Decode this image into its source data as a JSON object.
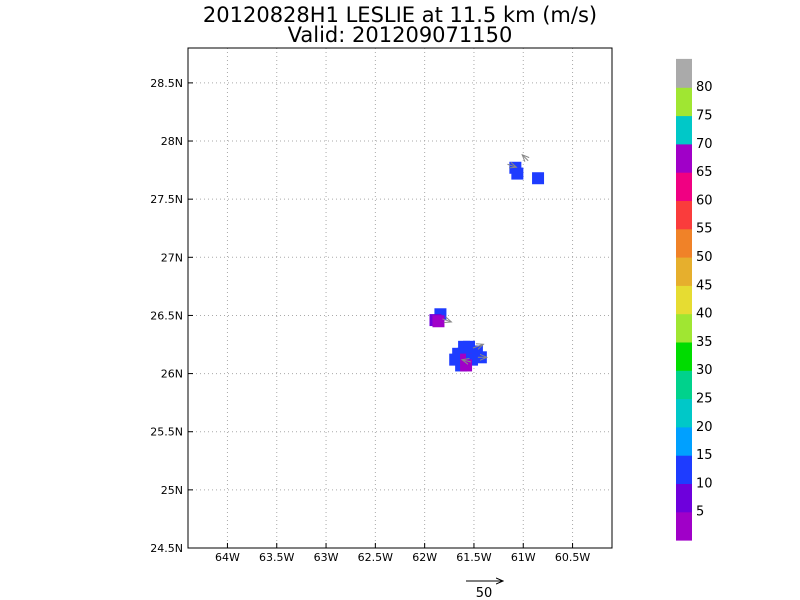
{
  "chart_data": {
    "type": "heatmap",
    "title": "20120828H1 LESLIE at 11.5 km (m/s)",
    "subtitle": "Valid: 201209071150",
    "xlabel": "",
    "ylabel": "",
    "xlim": [
      -64.4,
      -60.1
    ],
    "ylim": [
      24.5,
      28.8
    ],
    "grid": true,
    "x_ticks": [
      {
        "value": -64.0,
        "label": "64W"
      },
      {
        "value": -63.5,
        "label": "63.5W"
      },
      {
        "value": -63.0,
        "label": "63W"
      },
      {
        "value": -62.5,
        "label": "62.5W"
      },
      {
        "value": -62.0,
        "label": "62W"
      },
      {
        "value": -61.5,
        "label": "61.5W"
      },
      {
        "value": -61.0,
        "label": "61W"
      },
      {
        "value": -60.5,
        "label": "60.5W"
      }
    ],
    "y_ticks": [
      {
        "value": 24.5,
        "label": "24.5N"
      },
      {
        "value": 25.0,
        "label": "25N"
      },
      {
        "value": 25.5,
        "label": "25.5N"
      },
      {
        "value": 26.0,
        "label": "26N"
      },
      {
        "value": 26.5,
        "label": "26.5N"
      },
      {
        "value": 27.0,
        "label": "27N"
      },
      {
        "value": 27.5,
        "label": "27.5N"
      },
      {
        "value": 28.0,
        "label": "28N"
      },
      {
        "value": 28.5,
        "label": "28.5N"
      }
    ],
    "colorbar": {
      "levels": [
        0,
        5,
        10,
        15,
        20,
        25,
        30,
        35,
        40,
        45,
        50,
        55,
        60,
        65,
        70,
        75,
        80,
        85
      ],
      "labels": [
        "5",
        "10",
        "15",
        "20",
        "25",
        "30",
        "35",
        "40",
        "45",
        "50",
        "55",
        "60",
        "65",
        "70",
        "75",
        "80"
      ],
      "colors": [
        "#a000c8",
        "#6e00dc",
        "#1e3cff",
        "#00a0ff",
        "#00c8c8",
        "#00d28c",
        "#00dc00",
        "#a0e632",
        "#e6dc32",
        "#e6af2d",
        "#f08228",
        "#fa3c3c",
        "#f00082",
        "#a000c8",
        "#00c8c8",
        "#a0e632",
        "#aaaaaa"
      ]
    },
    "cells": [
      {
        "lon": -61.08,
        "lat": 27.77,
        "value": 13
      },
      {
        "lon": -61.06,
        "lat": 27.72,
        "value": 13
      },
      {
        "lon": -60.85,
        "lat": 27.68,
        "value": 13
      },
      {
        "lon": -61.84,
        "lat": 26.51,
        "value": 13
      },
      {
        "lon": -61.89,
        "lat": 26.46,
        "value": 9
      },
      {
        "lon": -61.86,
        "lat": 26.45,
        "value": 4
      },
      {
        "lon": -61.6,
        "lat": 26.23,
        "value": 13
      },
      {
        "lon": -61.55,
        "lat": 26.23,
        "value": 13
      },
      {
        "lon": -61.66,
        "lat": 26.17,
        "value": 13
      },
      {
        "lon": -61.61,
        "lat": 26.17,
        "value": 13
      },
      {
        "lon": -61.55,
        "lat": 26.17,
        "value": 13
      },
      {
        "lon": -61.47,
        "lat": 26.19,
        "value": 13
      },
      {
        "lon": -61.43,
        "lat": 26.14,
        "value": 13
      },
      {
        "lon": -61.69,
        "lat": 26.12,
        "value": 13
      },
      {
        "lon": -61.58,
        "lat": 26.12,
        "value": 4
      },
      {
        "lon": -61.52,
        "lat": 26.12,
        "value": 13
      },
      {
        "lon": -61.63,
        "lat": 26.07,
        "value": 13
      },
      {
        "lon": -61.58,
        "lat": 26.07,
        "value": 4
      }
    ],
    "vectors": [
      {
        "lon": -61.16,
        "lat": 27.8,
        "u": 12,
        "v": -4
      },
      {
        "lon": -60.95,
        "lat": 27.83,
        "u": -8,
        "v": 8
      },
      {
        "lon": -61.82,
        "lat": 26.47,
        "u": 12,
        "v": -4
      },
      {
        "lon": -61.51,
        "lat": 26.22,
        "u": 14,
        "v": 5
      },
      {
        "lon": -61.46,
        "lat": 26.14,
        "u": 12,
        "v": 0
      },
      {
        "lon": -61.53,
        "lat": 26.1,
        "u": -12,
        "v": 3
      }
    ],
    "reference_vector": {
      "magnitude": 50,
      "label": "50"
    }
  }
}
